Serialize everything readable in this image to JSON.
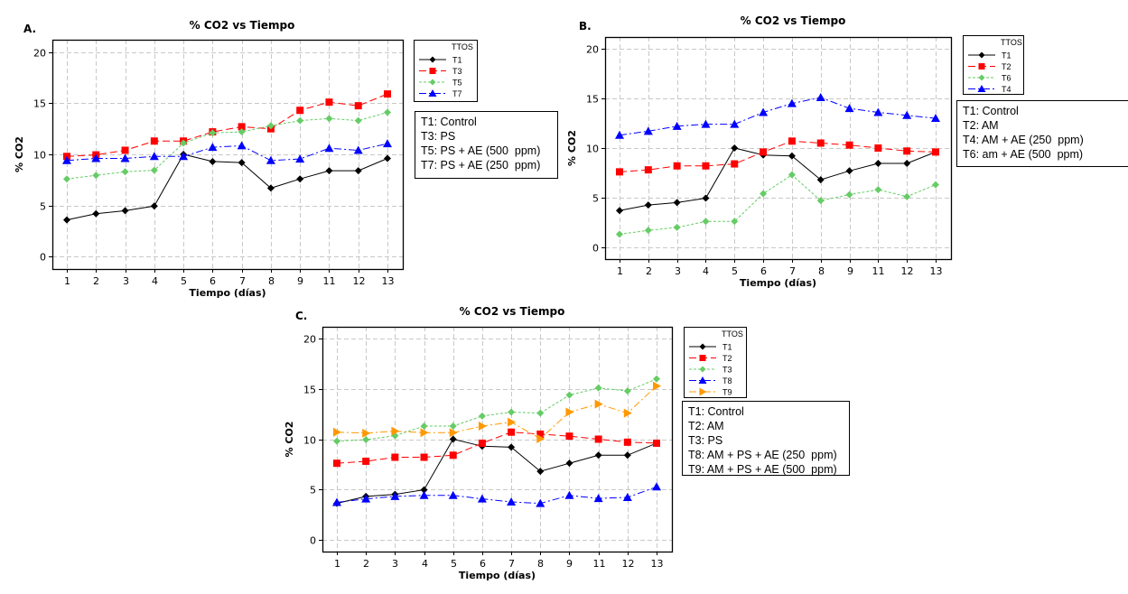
{
  "chart_data": [
    {
      "id": "A",
      "panel_label": "A.",
      "type": "line",
      "title": "% CO2 vs Tiempo",
      "xlabel": "Tiempo (días)",
      "ylabel": "% CO2",
      "categories": [
        "1",
        "2",
        "3",
        "4",
        "5",
        "6",
        "7",
        "8",
        "9",
        "11",
        "12",
        "13"
      ],
      "ylim": [
        -1.2,
        21.2
      ],
      "yticks": [
        0,
        5,
        10,
        15,
        20
      ],
      "grid": true,
      "legend_title": "TTOS",
      "legend_position": "right",
      "series": [
        {
          "name": "T1",
          "color": "#000000",
          "marker": "diamond",
          "dash": "solid",
          "values": [
            3.6,
            4.2,
            4.5,
            4.95,
            10.0,
            9.3,
            9.2,
            6.7,
            7.6,
            8.4,
            8.4,
            9.6
          ]
        },
        {
          "name": "T3",
          "color": "#ff0000",
          "marker": "square",
          "dash": "dashed",
          "values": [
            9.8,
            9.95,
            10.4,
            11.3,
            11.3,
            12.2,
            12.7,
            12.5,
            14.3,
            15.1,
            14.75,
            15.9
          ]
        },
        {
          "name": "T5",
          "color": "#66cc66",
          "marker": "diamond",
          "dash": "dotted",
          "values": [
            7.6,
            7.95,
            8.3,
            8.45,
            11.1,
            12.1,
            12.2,
            12.8,
            13.3,
            13.5,
            13.3,
            14.1
          ]
        },
        {
          "name": "T7",
          "color": "#0000ff",
          "marker": "triangle",
          "dash": "dashdot",
          "values": [
            9.4,
            9.6,
            9.6,
            9.8,
            9.8,
            10.7,
            10.85,
            9.4,
            9.55,
            10.6,
            10.4,
            11.05
          ]
        }
      ],
      "descriptions": [
        "T1: Control",
        "T3: PS",
        "T5: PS + AE (500  ppm)",
        "T7: PS + AE (250  ppm)"
      ]
    },
    {
      "id": "B",
      "panel_label": "B.",
      "type": "line",
      "title": "% CO2 vs Tiempo",
      "xlabel": "Tiempo (días)",
      "ylabel": "% CO2",
      "categories": [
        "1",
        "2",
        "3",
        "4",
        "5",
        "6",
        "7",
        "8",
        "9",
        "11",
        "12",
        "13"
      ],
      "ylim": [
        -1.2,
        21.2
      ],
      "yticks": [
        0,
        5,
        10,
        15,
        20
      ],
      "grid": true,
      "legend_title": "TTOS",
      "legend_position": "right",
      "series": [
        {
          "name": "T1",
          "color": "#000000",
          "marker": "diamond",
          "dash": "solid",
          "values": [
            3.7,
            4.25,
            4.5,
            4.95,
            10.0,
            9.3,
            9.2,
            6.8,
            7.7,
            8.45,
            8.45,
            9.6
          ]
        },
        {
          "name": "T2",
          "color": "#ff0000",
          "marker": "square",
          "dash": "dashed",
          "values": [
            7.6,
            7.8,
            8.2,
            8.2,
            8.4,
            9.6,
            10.7,
            10.5,
            10.3,
            10.0,
            9.7,
            9.6
          ]
        },
        {
          "name": "T6",
          "color": "#66cc66",
          "marker": "diamond",
          "dash": "dotted",
          "values": [
            1.3,
            1.7,
            2.0,
            2.6,
            2.6,
            5.4,
            7.3,
            4.7,
            5.3,
            5.8,
            5.1,
            6.3
          ]
        },
        {
          "name": "T4",
          "color": "#0000ff",
          "marker": "triangle",
          "dash": "dashdot",
          "values": [
            11.3,
            11.7,
            12.2,
            12.4,
            12.4,
            13.6,
            14.5,
            15.1,
            14.0,
            13.6,
            13.3,
            13.0
          ]
        }
      ],
      "descriptions": [
        "T1: Control",
        "T2: AM",
        "T4: AM + AE (250  ppm)",
        "T6: am + AE (500  ppm)"
      ]
    },
    {
      "id": "C",
      "panel_label": "C.",
      "type": "line",
      "title": "% CO2 vs Tiempo",
      "xlabel": "Tiempo (días)",
      "ylabel": "% CO2",
      "categories": [
        "1",
        "2",
        "3",
        "4",
        "5",
        "6",
        "7",
        "8",
        "9",
        "11",
        "12",
        "13"
      ],
      "ylim": [
        -1.2,
        21.2
      ],
      "yticks": [
        0,
        5,
        10,
        15,
        20
      ],
      "grid": true,
      "legend_title": "TTOS",
      "legend_position": "right",
      "series": [
        {
          "name": "T1",
          "color": "#000000",
          "marker": "diamond",
          "dash": "solid",
          "values": [
            3.6,
            4.3,
            4.5,
            4.95,
            10.0,
            9.3,
            9.2,
            6.8,
            7.6,
            8.4,
            8.4,
            9.6
          ]
        },
        {
          "name": "T2",
          "color": "#ff0000",
          "marker": "square",
          "dash": "dashed",
          "values": [
            7.6,
            7.8,
            8.2,
            8.2,
            8.4,
            9.6,
            10.7,
            10.5,
            10.3,
            10.0,
            9.7,
            9.6
          ]
        },
        {
          "name": "T3",
          "color": "#66cc66",
          "marker": "diamond",
          "dash": "dotted",
          "values": [
            9.8,
            9.95,
            10.35,
            11.3,
            11.3,
            12.3,
            12.7,
            12.6,
            14.4,
            15.1,
            14.8,
            16.0
          ]
        },
        {
          "name": "T8",
          "color": "#0000ff",
          "marker": "triangle",
          "dash": "dashdot",
          "values": [
            3.7,
            4.05,
            4.3,
            4.4,
            4.4,
            4.05,
            3.75,
            3.6,
            4.4,
            4.1,
            4.2,
            5.25
          ]
        },
        {
          "name": "T9",
          "color": "#ff9900",
          "marker": "triangle-right",
          "dash": "dashdot",
          "values": [
            10.7,
            10.6,
            10.8,
            10.65,
            10.65,
            11.3,
            11.7,
            10.05,
            12.7,
            13.5,
            12.6,
            15.3
          ]
        }
      ],
      "descriptions": [
        "T1: Control",
        "T2: AM",
        "T3: PS",
        "T8: AM + PS + AE (250  ppm)",
        "T9: AM + PS + AE (500  ppm)"
      ]
    }
  ]
}
